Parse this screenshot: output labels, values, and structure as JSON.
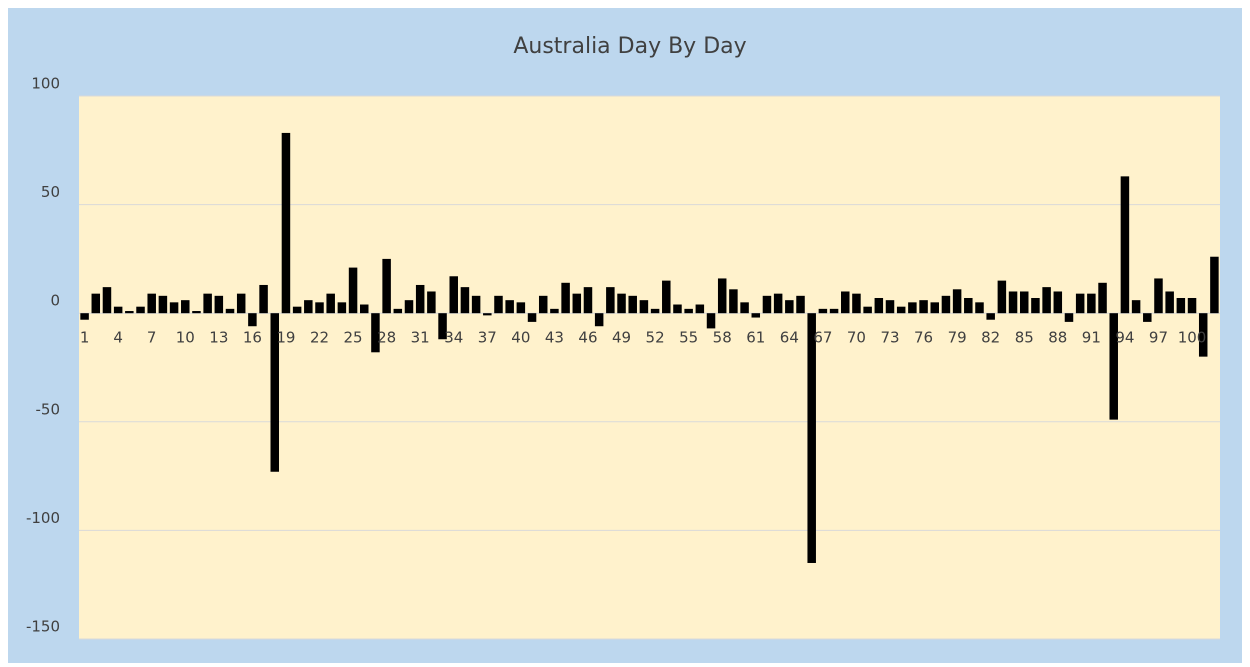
{
  "chart_data": {
    "type": "bar",
    "title": "Australia Day By Day",
    "categories": [
      1,
      null,
      null,
      4,
      null,
      null,
      7,
      null,
      null,
      10,
      null,
      null,
      13,
      null,
      null,
      16,
      null,
      null,
      19,
      null,
      null,
      22,
      null,
      null,
      25,
      null,
      null,
      28,
      null,
      null,
      31,
      null,
      null,
      34,
      null,
      null,
      37,
      null,
      null,
      40,
      null,
      null,
      43,
      null,
      null,
      46,
      null,
      null,
      49,
      null,
      null,
      52,
      null,
      null,
      55,
      null,
      null,
      58,
      null,
      null,
      61,
      null,
      null,
      64,
      null,
      null,
      67,
      null,
      null,
      70,
      null,
      null,
      73,
      null,
      null,
      76,
      null,
      null,
      79,
      null,
      null,
      82,
      null,
      null,
      85,
      null,
      null,
      88,
      null,
      null,
      91,
      null,
      null,
      94,
      null,
      null,
      97,
      null,
      null,
      100,
      null,
      null
    ],
    "values": [
      -3,
      9,
      12,
      3,
      1,
      3,
      9,
      8,
      5,
      6,
      1,
      9,
      8,
      2,
      9,
      -6,
      13,
      -73,
      83,
      3,
      6,
      5,
      9,
      5,
      21,
      4,
      -18,
      25,
      2,
      6,
      13,
      10,
      -12,
      17,
      12,
      8,
      -1,
      8,
      6,
      5,
      -4,
      8,
      2,
      14,
      9,
      12,
      -6,
      12,
      9,
      8,
      6,
      2,
      15,
      4,
      2,
      4,
      -7,
      16,
      11,
      5,
      -2,
      8,
      9,
      6,
      8,
      -115,
      2,
      2,
      10,
      9,
      3,
      7,
      6,
      3,
      5,
      6,
      5,
      8,
      11,
      7,
      5,
      -3,
      15,
      10,
      10,
      7,
      12,
      10,
      -4,
      9,
      9,
      14,
      -49,
      63,
      6,
      -4,
      16,
      10,
      7,
      7,
      -20,
      26
    ],
    "color": "#000000",
    "ylim": [
      -150,
      100
    ],
    "yticks": [
      -150,
      -100,
      -50,
      0,
      50,
      100
    ],
    "grid": true
  }
}
